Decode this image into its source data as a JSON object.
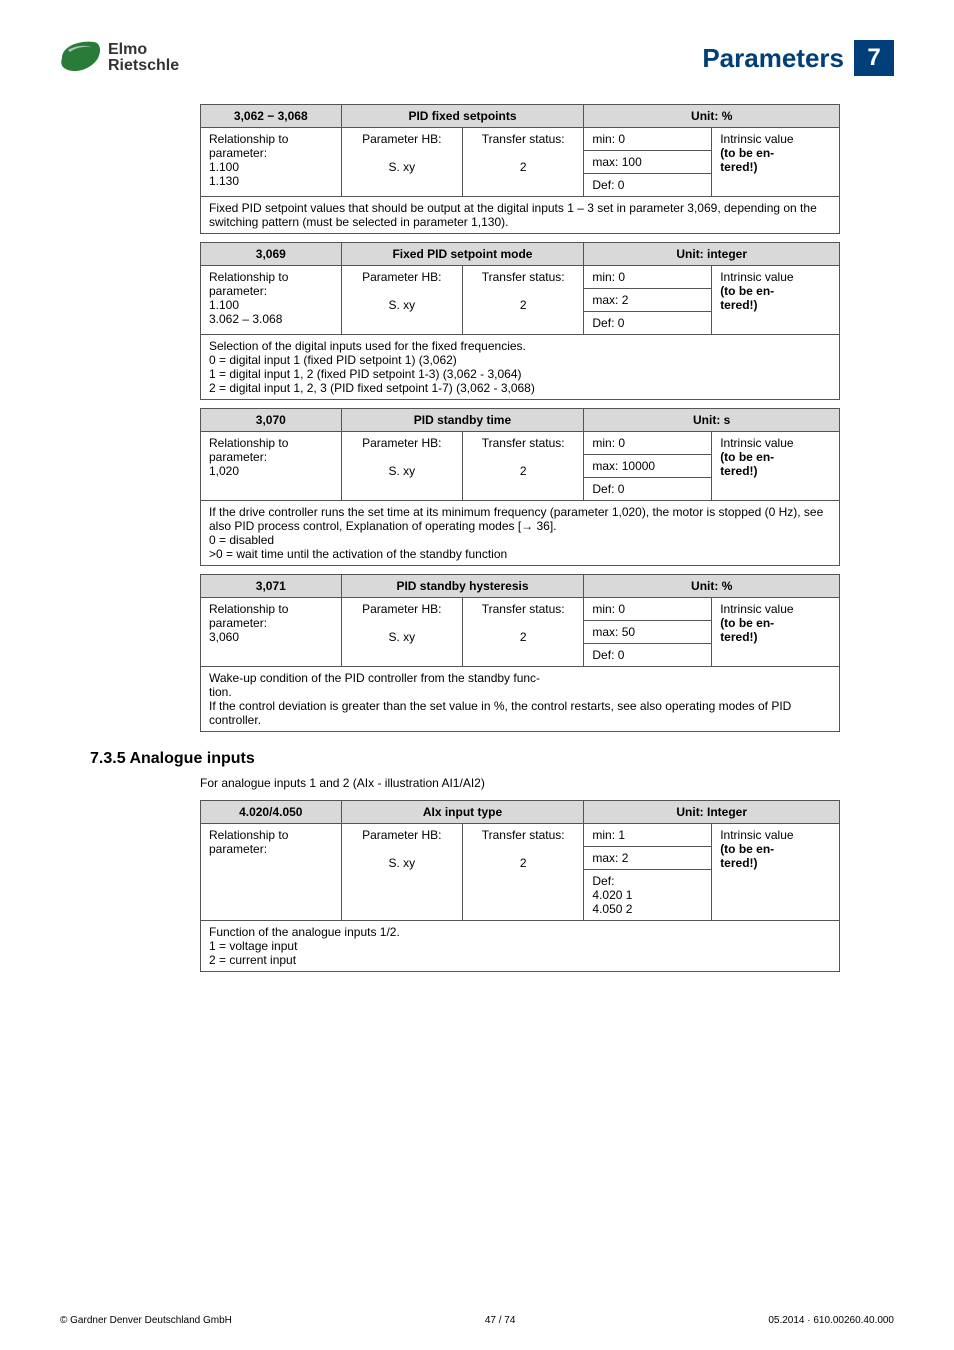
{
  "header": {
    "logo_line1": "Elmo",
    "logo_line2": "Rietschle",
    "title": "Parameters",
    "page_number": "7"
  },
  "tables": [
    {
      "param_id": "3,062 − 3,068",
      "name": "PID fixed setpoints",
      "unit": "Unit: %",
      "rel_label": "Relationship to parameter:",
      "rel_values": "1.100\n1.130",
      "hb_label": "Parameter HB:",
      "hb_val": "S. xy",
      "status_label": "Transfer status:",
      "status_val": "2",
      "min": "min: 0",
      "max": "max: 100",
      "def": "Def: 0",
      "intrinsic": "Intrinsic value",
      "entered": "(to be en-\ntered!)",
      "description": "Fixed PID setpoint values that should be output at the digital inputs 1 – 3 set in parameter 3,069, depending on the switching pattern (must be selected in parameter 1,130)."
    },
    {
      "param_id": "3,069",
      "name": "Fixed PID setpoint mode",
      "unit": "Unit: integer",
      "rel_label": "Relationship to parameter:",
      "rel_values": "1.100\n3.062 – 3.068",
      "hb_label": "Parameter HB:",
      "hb_val": "S. xy",
      "status_label": "Transfer status:",
      "status_val": "2",
      "min": "min: 0",
      "max": "max: 2",
      "def": "Def: 0",
      "intrinsic": "Intrinsic value",
      "entered": "(to be en-\ntered!)",
      "description": "Selection of the digital inputs used for the fixed frequencies.\n0 = digital input 1 (fixed PID setpoint 1) (3,062)\n1 = digital input 1, 2 (fixed PID setpoint 1-3) (3,062 - 3,064)\n2 = digital input 1, 2, 3 (PID fixed setpoint 1-7) (3,062 - 3,068)"
    },
    {
      "param_id": "3,070",
      "name": "PID standby time",
      "unit": "Unit: s",
      "rel_label": "Relationship to parameter:",
      "rel_values": "1,020",
      "hb_label": "Parameter HB:",
      "hb_val": "S. xy",
      "status_label": "Transfer status:",
      "status_val": "2",
      "min": "min: 0",
      "max": "max: 10000",
      "def": "Def: 0",
      "intrinsic": "Intrinsic value",
      "entered": "(to be en-\ntered!)",
      "description": "If the drive controller runs the set time at its minimum frequency (parameter 1,020), the motor is stopped (0 Hz), see also PID process control, Explanation of operating modes [→ 36].\n0 = disabled\n>0 = wait time until the activation of the standby function"
    },
    {
      "param_id": "3,071",
      "name": "PID standby hysteresis",
      "unit": "Unit: %",
      "rel_label": "Relationship to parameter:",
      "rel_values": "3,060",
      "hb_label": "Parameter HB:",
      "hb_val": "S. xy",
      "status_label": "Transfer status:",
      "status_val": "2",
      "min": "min: 0",
      "max": "max: 50",
      "def": "Def: 0",
      "intrinsic": "Intrinsic value",
      "entered": "(to be en-\ntered!)",
      "description": "Wake-up condition of the PID controller from the standby func-\ntion.\nIf the control deviation is greater than the set value in %, the control restarts, see also operating modes of PID controller."
    }
  ],
  "section": {
    "number": "7.3.5",
    "title": "Analogue inputs",
    "subtitle": "For analogue inputs 1 and 2 (AIx - illustration AI1/AI2)"
  },
  "analog_table": {
    "param_id": "4.020/4.050",
    "name": "AIx input type",
    "unit": "Unit: Integer",
    "rel_label": "Relationship to parameter:",
    "hb_label": "Parameter HB:",
    "hb_val": "S. xy",
    "status_label": "Transfer status:",
    "status_val": "2",
    "min": "min: 1",
    "max": "max: 2",
    "def": "Def:\n4.020 1\n4.050 2",
    "intrinsic": "Intrinsic value",
    "entered": "(to be en-\ntered!)",
    "description": "Function of the analogue inputs 1/2.\n1 = voltage input\n2 = current input"
  },
  "footer": {
    "left": "© Gardner Denver Deutschland GmbH",
    "center": "47 / 74",
    "right": "05.2014 · 610.00260.40.000"
  }
}
